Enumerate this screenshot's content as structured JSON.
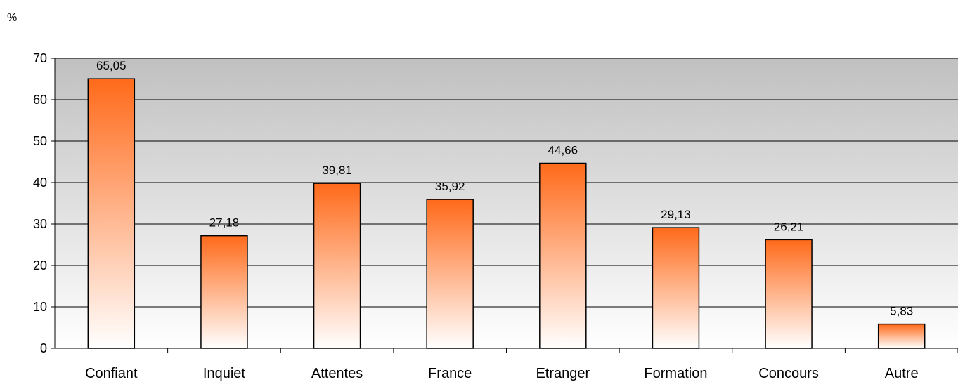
{
  "chart_data": {
    "type": "bar",
    "unit_label": "%",
    "categories": [
      "Confiant",
      "Inquiet",
      "Attentes",
      "France",
      "Etranger",
      "Formation",
      "Concours",
      "Autre"
    ],
    "values": [
      65.05,
      27.18,
      39.81,
      35.92,
      44.66,
      29.13,
      26.21,
      5.83
    ],
    "data_labels": [
      "65,05",
      "27,18",
      "39,81",
      "35,92",
      "44,66",
      "29,13",
      "26,21",
      "5,83"
    ],
    "ylim": [
      0,
      70
    ],
    "yticks": [
      0,
      10,
      20,
      30,
      40,
      50,
      60,
      70
    ],
    "grid": true,
    "legend": "none",
    "colors": {
      "bar_top": "#ff6a1a",
      "bar_bottom": "#ffffff",
      "bar_edge": "#000000",
      "plot_bg_top": "#c0c0c0",
      "plot_bg_bottom": "#ffffff"
    }
  }
}
